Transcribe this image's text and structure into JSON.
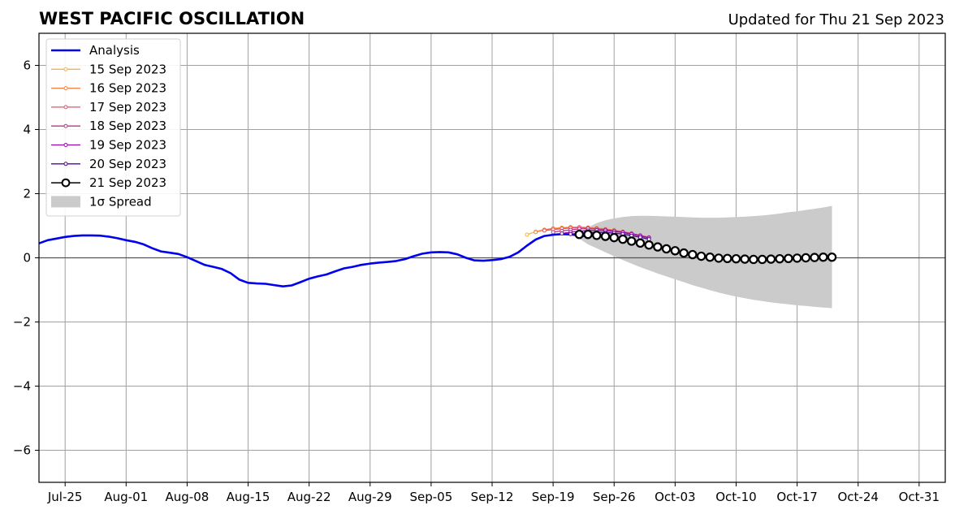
{
  "title": "WEST PACIFIC OSCILLATION",
  "updated": "Updated for Thu 21 Sep 2023",
  "colors": {
    "analysis": "#0000ee",
    "spread": "#cbcbcb",
    "grid": "#a0a0a0",
    "zero_line": "#555555",
    "forecast_21": "#000000"
  },
  "chart_data": {
    "type": "line",
    "title": "WEST PACIFIC OSCILLATION",
    "xlabel": "",
    "ylabel": "",
    "x_axis": "date",
    "xlim": [
      "2023-07-22",
      "2023-11-03"
    ],
    "ylim": [
      -7,
      7
    ],
    "grid": true,
    "legend_position": "top-left",
    "x_tick_labels": [
      "Jul-25",
      "Aug-01",
      "Aug-08",
      "Aug-15",
      "Aug-22",
      "Aug-29",
      "Sep-05",
      "Sep-12",
      "Sep-19",
      "Sep-26",
      "Oct-03",
      "Oct-10",
      "Oct-17",
      "Oct-24",
      "Oct-31"
    ],
    "x_tick_dates": [
      "2023-07-25",
      "2023-08-01",
      "2023-08-08",
      "2023-08-15",
      "2023-08-22",
      "2023-08-29",
      "2023-09-05",
      "2023-09-12",
      "2023-09-19",
      "2023-09-26",
      "2023-10-03",
      "2023-10-10",
      "2023-10-17",
      "2023-10-24",
      "2023-10-31"
    ],
    "y_ticks": [
      -6,
      -4,
      -2,
      0,
      2,
      4,
      6
    ],
    "y_tick_labels": [
      "−6",
      "−4",
      "−2",
      "0",
      "2",
      "4",
      "6"
    ],
    "legend": [
      "Analysis",
      "15 Sep 2023",
      "16 Sep 2023",
      "17 Sep 2023",
      "18 Sep 2023",
      "19 Sep 2023",
      "20 Sep 2023",
      "21 Sep 2023",
      "1σ Spread"
    ],
    "analysis": {
      "name": "Analysis",
      "color": "#0000ee",
      "points": [
        [
          "2023-07-22",
          0.45
        ],
        [
          "2023-07-23",
          0.55
        ],
        [
          "2023-07-24",
          0.6
        ],
        [
          "2023-07-25",
          0.65
        ],
        [
          "2023-07-26",
          0.68
        ],
        [
          "2023-07-27",
          0.7
        ],
        [
          "2023-07-28",
          0.7
        ],
        [
          "2023-07-29",
          0.69
        ],
        [
          "2023-07-30",
          0.66
        ],
        [
          "2023-07-31",
          0.61
        ],
        [
          "2023-08-01",
          0.55
        ],
        [
          "2023-08-02",
          0.5
        ],
        [
          "2023-08-03",
          0.42
        ],
        [
          "2023-08-04",
          0.3
        ],
        [
          "2023-08-05",
          0.2
        ],
        [
          "2023-08-06",
          0.16
        ],
        [
          "2023-08-07",
          0.12
        ],
        [
          "2023-08-08",
          0.02
        ],
        [
          "2023-08-09",
          -0.1
        ],
        [
          "2023-08-10",
          -0.22
        ],
        [
          "2023-08-11",
          -0.28
        ],
        [
          "2023-08-12",
          -0.35
        ],
        [
          "2023-08-13",
          -0.48
        ],
        [
          "2023-08-14",
          -0.68
        ],
        [
          "2023-08-15",
          -0.78
        ],
        [
          "2023-08-16",
          -0.8
        ],
        [
          "2023-08-17",
          -0.81
        ],
        [
          "2023-08-18",
          -0.85
        ],
        [
          "2023-08-19",
          -0.89
        ],
        [
          "2023-08-20",
          -0.86
        ],
        [
          "2023-08-21",
          -0.76
        ],
        [
          "2023-08-22",
          -0.65
        ],
        [
          "2023-08-23",
          -0.58
        ],
        [
          "2023-08-24",
          -0.52
        ],
        [
          "2023-08-25",
          -0.42
        ],
        [
          "2023-08-26",
          -0.33
        ],
        [
          "2023-08-27",
          -0.28
        ],
        [
          "2023-08-28",
          -0.22
        ],
        [
          "2023-08-29",
          -0.18
        ],
        [
          "2023-08-30",
          -0.15
        ],
        [
          "2023-08-31",
          -0.13
        ],
        [
          "2023-09-01",
          -0.1
        ],
        [
          "2023-09-02",
          -0.04
        ],
        [
          "2023-09-03",
          0.05
        ],
        [
          "2023-09-04",
          0.13
        ],
        [
          "2023-09-05",
          0.17
        ],
        [
          "2023-09-06",
          0.18
        ],
        [
          "2023-09-07",
          0.17
        ],
        [
          "2023-09-08",
          0.11
        ],
        [
          "2023-09-09",
          0.0
        ],
        [
          "2023-09-10",
          -0.08
        ],
        [
          "2023-09-11",
          -0.09
        ],
        [
          "2023-09-12",
          -0.07
        ],
        [
          "2023-09-13",
          -0.04
        ],
        [
          "2023-09-14",
          0.03
        ],
        [
          "2023-09-15",
          0.17
        ],
        [
          "2023-09-16",
          0.38
        ],
        [
          "2023-09-17",
          0.57
        ],
        [
          "2023-09-18",
          0.68
        ],
        [
          "2023-09-19",
          0.72
        ],
        [
          "2023-09-20",
          0.74
        ],
        [
          "2023-09-21",
          0.73
        ],
        [
          "2023-09-22",
          0.7
        ],
        [
          "2023-09-23",
          0.67
        ]
      ]
    },
    "forecasts": [
      {
        "name": "15 Sep 2023",
        "color": "#ffb13b",
        "start": "2023-09-16",
        "values": [
          0.72,
          0.82,
          0.88,
          0.92,
          0.94,
          0.96,
          0.96,
          0.95,
          0.93,
          0.9,
          0.87,
          0.82,
          0.77
        ]
      },
      {
        "name": "16 Sep 2023",
        "color": "#f47f46",
        "start": "2023-09-17",
        "values": [
          0.8,
          0.87,
          0.91,
          0.93,
          0.95,
          0.95,
          0.94,
          0.92,
          0.89,
          0.85,
          0.8,
          0.75
        ]
      },
      {
        "name": "17 Sep 2023",
        "color": "#e0566a",
        "start": "2023-09-18",
        "values": [
          0.85,
          0.88,
          0.91,
          0.93,
          0.94,
          0.93,
          0.91,
          0.88,
          0.84,
          0.8,
          0.75,
          0.7
        ]
      },
      {
        "name": "18 Sep 2023",
        "color": "#bd3786",
        "start": "2023-09-19",
        "values": [
          0.8,
          0.84,
          0.87,
          0.9,
          0.91,
          0.9,
          0.88,
          0.85,
          0.81,
          0.76,
          0.7,
          0.64
        ]
      },
      {
        "name": "19 Sep 2023",
        "color": "#8f0da4",
        "start": "2023-09-20",
        "values": [
          0.76,
          0.8,
          0.83,
          0.85,
          0.86,
          0.85,
          0.82,
          0.79,
          0.74,
          0.68,
          0.62
        ]
      },
      {
        "name": "20 Sep 2023",
        "color": "#5402a3",
        "start": "2023-09-21",
        "values": [
          0.74,
          0.77,
          0.79,
          0.8,
          0.79,
          0.77,
          0.74,
          0.69,
          0.64,
          0.58
        ]
      },
      {
        "name": "21 Sep 2023",
        "color": "#000000",
        "start": "2023-09-22",
        "values": [
          0.73,
          0.73,
          0.7,
          0.67,
          0.63,
          0.58,
          0.52,
          0.46,
          0.4,
          0.34,
          0.28,
          0.22,
          0.15,
          0.1,
          0.05,
          0.02,
          -0.01,
          -0.02,
          -0.03,
          -0.04,
          -0.05,
          -0.05,
          -0.04,
          -0.03,
          -0.02,
          -0.01,
          0.0,
          0.01,
          0.02,
          0.02
        ]
      }
    ],
    "spread": {
      "name": "1σ Spread",
      "color": "#cbcbcb",
      "start": "2023-09-22",
      "upper": [
        0.75,
        0.95,
        1.08,
        1.17,
        1.23,
        1.27,
        1.3,
        1.31,
        1.31,
        1.3,
        1.29,
        1.28,
        1.27,
        1.26,
        1.25,
        1.25,
        1.25,
        1.26,
        1.27,
        1.28,
        1.3,
        1.32,
        1.35,
        1.38,
        1.42,
        1.45,
        1.49,
        1.53,
        1.57,
        1.62
      ],
      "lower": [
        0.6,
        0.42,
        0.3,
        0.17,
        0.05,
        -0.07,
        -0.18,
        -0.29,
        -0.39,
        -0.49,
        -0.58,
        -0.67,
        -0.76,
        -0.85,
        -0.93,
        -1.01,
        -1.08,
        -1.15,
        -1.21,
        -1.26,
        -1.31,
        -1.35,
        -1.39,
        -1.42,
        -1.45,
        -1.48,
        -1.5,
        -1.53,
        -1.55,
        -1.57
      ]
    }
  }
}
